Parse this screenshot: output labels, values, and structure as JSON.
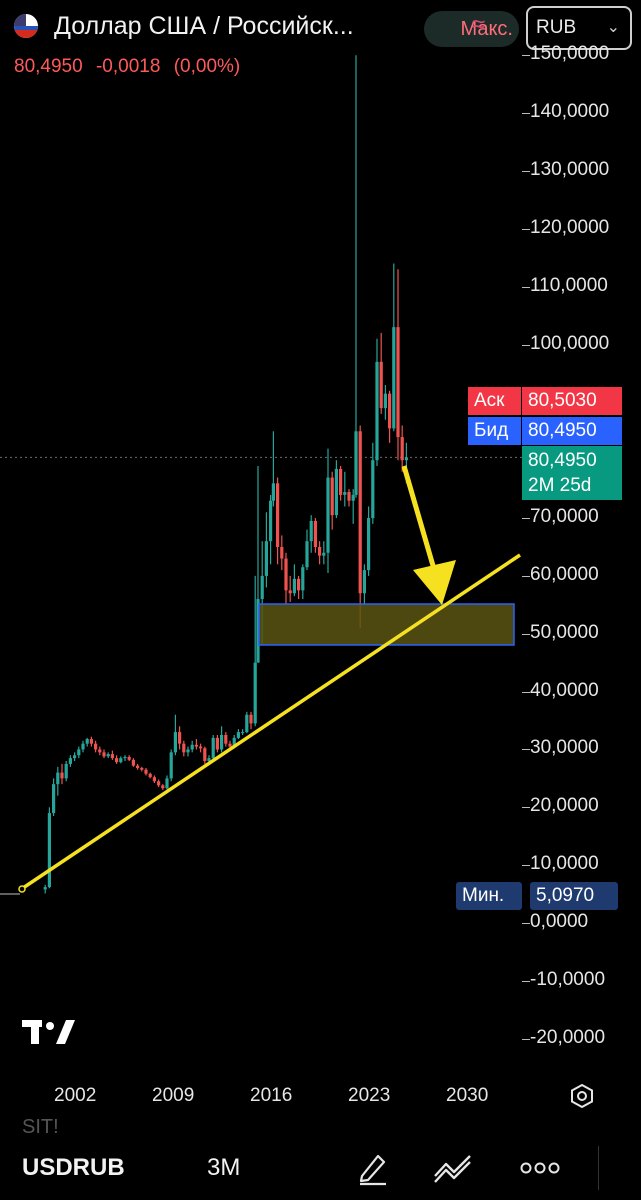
{
  "header": {
    "title": "Доллар США / Российск...",
    "last_price": "80,4950",
    "change": "-0,0018",
    "change_pct": "(0,00%)",
    "max_label": "Макс.",
    "currency": "RUB"
  },
  "axis": {
    "y_ticks": [
      "150,0000",
      "140,0000",
      "130,0000",
      "120,0000",
      "110,0000",
      "100,0000",
      "90,0000",
      "80,0000",
      "70,0000",
      "60,0000",
      "50,0000",
      "40,0000",
      "30,0000",
      "20,0000",
      "10,0000",
      "0,0000",
      "-10,0000",
      "-20,0000"
    ],
    "x_ticks": [
      "2002",
      "2009",
      "2016",
      "2023",
      "2030"
    ]
  },
  "badges": {
    "ask_label": "Аск",
    "ask_value": "80,5030",
    "bid_label": "Бид",
    "bid_value": "80,4950",
    "last_value": "80,4950",
    "countdown": "2M 25d",
    "min_label": "Мин.",
    "min_value": "5,0970"
  },
  "bottom": {
    "symbol": "USDRUB",
    "interval": "3M",
    "ghost_text": "SIT!"
  },
  "colors": {
    "up": "#26a69a",
    "down": "#ef5350",
    "trendline": "#f5e11f",
    "zone_fill": "#5a5512",
    "zone_border": "#2962ff",
    "ask_bg": "#f23645",
    "bid_bg": "#2962ff",
    "last_bg": "#089981",
    "min_bg": "#1e3a6e"
  },
  "chart_data": {
    "type": "candlestick",
    "title": "",
    "xlabel": "",
    "ylabel": "",
    "ylim": [
      -20,
      150
    ],
    "x_range": [
      1999,
      2034
    ],
    "series": [
      {
        "values": [
          {
            "t": 1999.8,
            "o": 5.8,
            "h": 6.6,
            "l": 5.1,
            "c": 6.2
          },
          {
            "t": 2000.1,
            "o": 6.2,
            "h": 20,
            "l": 6,
            "c": 19
          },
          {
            "t": 2000.4,
            "o": 19,
            "h": 25,
            "l": 18.5,
            "c": 24
          },
          {
            "t": 2000.7,
            "o": 24,
            "h": 27,
            "l": 22,
            "c": 26
          },
          {
            "t": 2001.0,
            "o": 26,
            "h": 27.5,
            "l": 24,
            "c": 25
          },
          {
            "t": 2001.3,
            "o": 25,
            "h": 28,
            "l": 24.5,
            "c": 27.5
          },
          {
            "t": 2001.6,
            "o": 27.5,
            "h": 29,
            "l": 27,
            "c": 28.5
          },
          {
            "t": 2001.9,
            "o": 28.5,
            "h": 29.5,
            "l": 28,
            "c": 29
          },
          {
            "t": 2002.2,
            "o": 29,
            "h": 30.5,
            "l": 28.5,
            "c": 30
          },
          {
            "t": 2002.5,
            "o": 30,
            "h": 31.5,
            "l": 29.5,
            "c": 31
          },
          {
            "t": 2002.8,
            "o": 31,
            "h": 32,
            "l": 30.5,
            "c": 31.8
          },
          {
            "t": 2003.1,
            "o": 31.8,
            "h": 32.2,
            "l": 30.5,
            "c": 31
          },
          {
            "t": 2003.4,
            "o": 31,
            "h": 31.5,
            "l": 29.5,
            "c": 30
          },
          {
            "t": 2003.7,
            "o": 30,
            "h": 30.5,
            "l": 29,
            "c": 29.5
          },
          {
            "t": 2004.0,
            "o": 29.5,
            "h": 30,
            "l": 28.5,
            "c": 28.8
          },
          {
            "t": 2004.3,
            "o": 28.8,
            "h": 29.5,
            "l": 28.5,
            "c": 29.2
          },
          {
            "t": 2004.6,
            "o": 29.2,
            "h": 29.8,
            "l": 28.2,
            "c": 28.5
          },
          {
            "t": 2004.9,
            "o": 28.5,
            "h": 29,
            "l": 27.5,
            "c": 27.8
          },
          {
            "t": 2005.2,
            "o": 27.8,
            "h": 28.8,
            "l": 27.6,
            "c": 28.5
          },
          {
            "t": 2005.5,
            "o": 28.5,
            "h": 29,
            "l": 28,
            "c": 28.7
          },
          {
            "t": 2005.8,
            "o": 28.7,
            "h": 29,
            "l": 28,
            "c": 28.2
          },
          {
            "t": 2006.1,
            "o": 28.2,
            "h": 28.5,
            "l": 27,
            "c": 27.2
          },
          {
            "t": 2006.4,
            "o": 27.2,
            "h": 27.5,
            "l": 26.5,
            "c": 26.8
          },
          {
            "t": 2006.7,
            "o": 26.8,
            "h": 27,
            "l": 26.2,
            "c": 26.5
          },
          {
            "t": 2007.0,
            "o": 26.5,
            "h": 26.8,
            "l": 25.5,
            "c": 25.8
          },
          {
            "t": 2007.3,
            "o": 25.8,
            "h": 26,
            "l": 25,
            "c": 25.2
          },
          {
            "t": 2007.6,
            "o": 25.2,
            "h": 25.5,
            "l": 24.2,
            "c": 24.5
          },
          {
            "t": 2007.9,
            "o": 24.5,
            "h": 24.8,
            "l": 23.5,
            "c": 23.8
          },
          {
            "t": 2008.2,
            "o": 23.8,
            "h": 24,
            "l": 23,
            "c": 23.3
          },
          {
            "t": 2008.5,
            "o": 23.3,
            "h": 25.5,
            "l": 23.1,
            "c": 25
          },
          {
            "t": 2008.8,
            "o": 25,
            "h": 30,
            "l": 24.5,
            "c": 29.5
          },
          {
            "t": 2009.1,
            "o": 29.5,
            "h": 36,
            "l": 29,
            "c": 33
          },
          {
            "t": 2009.4,
            "o": 33,
            "h": 34,
            "l": 30,
            "c": 31
          },
          {
            "t": 2009.7,
            "o": 31,
            "h": 31.5,
            "l": 28.8,
            "c": 29.5
          },
          {
            "t": 2010.0,
            "o": 29.5,
            "h": 30.5,
            "l": 28.8,
            "c": 30
          },
          {
            "t": 2010.3,
            "o": 30,
            "h": 31.5,
            "l": 29.5,
            "c": 30.8
          },
          {
            "t": 2010.6,
            "o": 30.8,
            "h": 31.8,
            "l": 30,
            "c": 30.5
          },
          {
            "t": 2010.9,
            "o": 30.5,
            "h": 31,
            "l": 29.5,
            "c": 30.2
          },
          {
            "t": 2011.2,
            "o": 30.2,
            "h": 30.5,
            "l": 27.5,
            "c": 28
          },
          {
            "t": 2011.5,
            "o": 28,
            "h": 29,
            "l": 27.3,
            "c": 28.5
          },
          {
            "t": 2011.8,
            "o": 28.5,
            "h": 32.5,
            "l": 28.3,
            "c": 32
          },
          {
            "t": 2012.1,
            "o": 32,
            "h": 32.5,
            "l": 29.5,
            "c": 30
          },
          {
            "t": 2012.4,
            "o": 30,
            "h": 34,
            "l": 29.5,
            "c": 32.5
          },
          {
            "t": 2012.7,
            "o": 32.5,
            "h": 33,
            "l": 30.5,
            "c": 31
          },
          {
            "t": 2013.0,
            "o": 31,
            "h": 31.5,
            "l": 30,
            "c": 30.5
          },
          {
            "t": 2013.3,
            "o": 30.5,
            "h": 32.5,
            "l": 30.2,
            "c": 32
          },
          {
            "t": 2013.6,
            "o": 32,
            "h": 33.5,
            "l": 31.8,
            "c": 33
          },
          {
            "t": 2013.9,
            "o": 33,
            "h": 33.5,
            "l": 32.5,
            "c": 33
          },
          {
            "t": 2014.2,
            "o": 33,
            "h": 36.5,
            "l": 32.8,
            "c": 36
          },
          {
            "t": 2014.5,
            "o": 36,
            "h": 36.5,
            "l": 33.5,
            "c": 34.5
          },
          {
            "t": 2014.8,
            "o": 34.5,
            "h": 60,
            "l": 34,
            "c": 45
          },
          {
            "t": 2015.0,
            "o": 45,
            "h": 79,
            "l": 45,
            "c": 56
          },
          {
            "t": 2015.3,
            "o": 56,
            "h": 66,
            "l": 48,
            "c": 60
          },
          {
            "t": 2015.6,
            "o": 60,
            "h": 71,
            "l": 58,
            "c": 66
          },
          {
            "t": 2015.9,
            "o": 66,
            "h": 74,
            "l": 62,
            "c": 73
          },
          {
            "t": 2016.1,
            "o": 73,
            "h": 85,
            "l": 72,
            "c": 76
          },
          {
            "t": 2016.4,
            "o": 76,
            "h": 77,
            "l": 62,
            "c": 65
          },
          {
            "t": 2016.7,
            "o": 65,
            "h": 67,
            "l": 61,
            "c": 63
          },
          {
            "t": 2017.0,
            "o": 63,
            "h": 64,
            "l": 55,
            "c": 57.5
          },
          {
            "t": 2017.3,
            "o": 57.5,
            "h": 60,
            "l": 55.5,
            "c": 57
          },
          {
            "t": 2017.6,
            "o": 57,
            "h": 62,
            "l": 56.5,
            "c": 59.5
          },
          {
            "t": 2017.9,
            "o": 59.5,
            "h": 60,
            "l": 56,
            "c": 57.5
          },
          {
            "t": 2018.2,
            "o": 57.5,
            "h": 62,
            "l": 56,
            "c": 61.5
          },
          {
            "t": 2018.5,
            "o": 61.5,
            "h": 68,
            "l": 61,
            "c": 66
          },
          {
            "t": 2018.8,
            "o": 66,
            "h": 70.5,
            "l": 64,
            "c": 69.5
          },
          {
            "t": 2019.1,
            "o": 69.5,
            "h": 70,
            "l": 64,
            "c": 65
          },
          {
            "t": 2019.4,
            "o": 65,
            "h": 66,
            "l": 62,
            "c": 63.5
          },
          {
            "t": 2019.7,
            "o": 63.5,
            "h": 66,
            "l": 62,
            "c": 64
          },
          {
            "t": 2020.0,
            "o": 64,
            "h": 82,
            "l": 60.5,
            "c": 77
          },
          {
            "t": 2020.3,
            "o": 77,
            "h": 78,
            "l": 68,
            "c": 70.5
          },
          {
            "t": 2020.6,
            "o": 70.5,
            "h": 80,
            "l": 70,
            "c": 78.5
          },
          {
            "t": 2020.9,
            "o": 78.5,
            "h": 79,
            "l": 73,
            "c": 74
          },
          {
            "t": 2021.2,
            "o": 74,
            "h": 78,
            "l": 72,
            "c": 74.5
          },
          {
            "t": 2021.5,
            "o": 74.5,
            "h": 75,
            "l": 72,
            "c": 73
          },
          {
            "t": 2021.8,
            "o": 73,
            "h": 75,
            "l": 69,
            "c": 74
          },
          {
            "t": 2022.0,
            "o": 74,
            "h": 150,
            "l": 73.5,
            "c": 85
          },
          {
            "t": 2022.3,
            "o": 85,
            "h": 86,
            "l": 51,
            "c": 57
          },
          {
            "t": 2022.6,
            "o": 57,
            "h": 62,
            "l": 55,
            "c": 61
          },
          {
            "t": 2022.9,
            "o": 61,
            "h": 72,
            "l": 60,
            "c": 70
          },
          {
            "t": 2023.2,
            "o": 70,
            "h": 83,
            "l": 69,
            "c": 80
          },
          {
            "t": 2023.5,
            "o": 80,
            "h": 101,
            "l": 79,
            "c": 97
          },
          {
            "t": 2023.8,
            "o": 97,
            "h": 102,
            "l": 88,
            "c": 89
          },
          {
            "t": 2024.1,
            "o": 89,
            "h": 93,
            "l": 87,
            "c": 91.5
          },
          {
            "t": 2024.4,
            "o": 91.5,
            "h": 92,
            "l": 83,
            "c": 85.5
          },
          {
            "t": 2024.7,
            "o": 85.5,
            "h": 114,
            "l": 85,
            "c": 103
          },
          {
            "t": 2025.0,
            "o": 103,
            "h": 113,
            "l": 80,
            "c": 84
          },
          {
            "t": 2025.3,
            "o": 84,
            "h": 86,
            "l": 78,
            "c": 80
          },
          {
            "t": 2025.6,
            "o": 80,
            "h": 83,
            "l": 76,
            "c": 80.495
          }
        ]
      }
    ]
  }
}
